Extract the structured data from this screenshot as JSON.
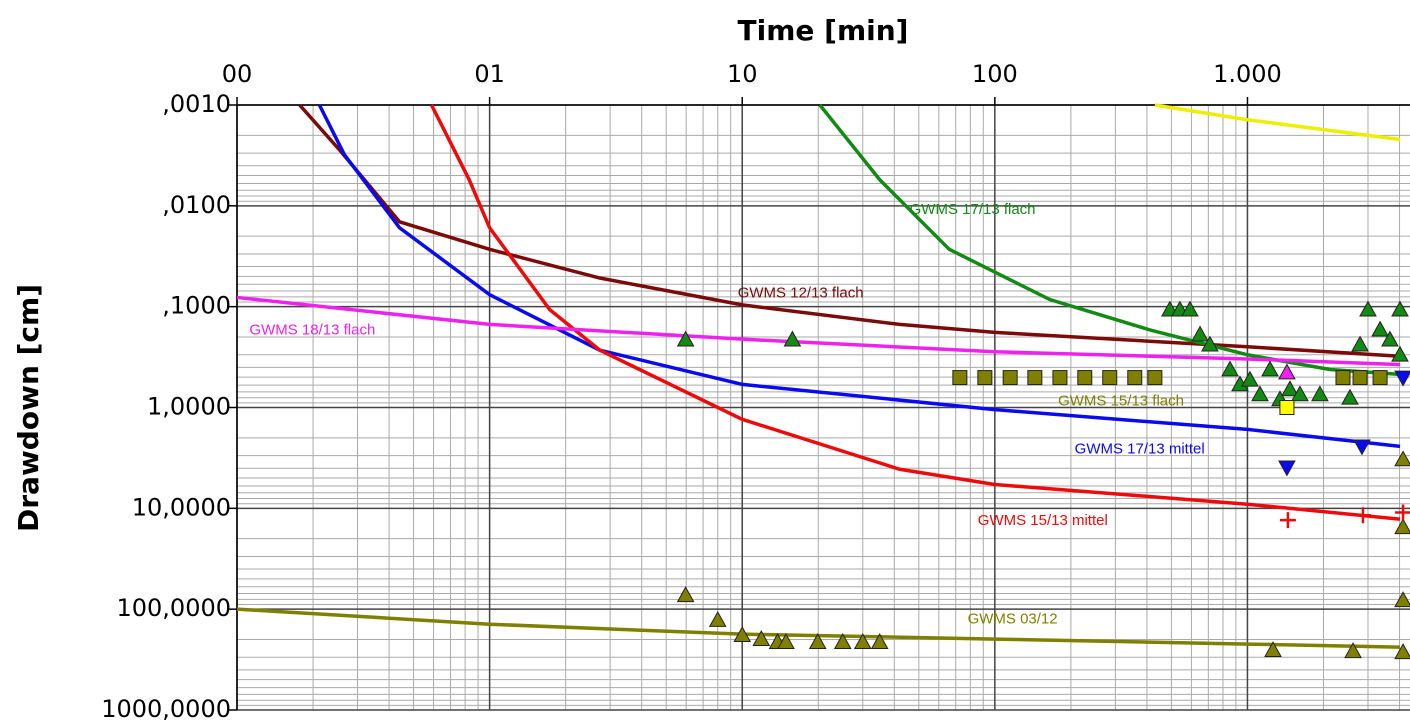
{
  "chart_data": {
    "type": "line",
    "title": "Time [min]",
    "ylabel": "Drawdown [cm]",
    "xscale": "log",
    "yscale": "log",
    "y_inverted": true,
    "grid": true,
    "xlim": [
      0.1,
      4400
    ],
    "ylim": [
      0.001,
      1000
    ],
    "xticks": [
      {
        "value": 0.1,
        "label": "00"
      },
      {
        "value": 1,
        "label": "01"
      },
      10,
      100,
      {
        "value": 1000,
        "label": "1.000"
      }
    ],
    "yticks": [
      {
        "value": 0.001,
        "label": ",0010"
      },
      {
        "value": 0.01,
        "label": ",0100"
      },
      {
        "value": 0.1,
        "label": ",1000"
      },
      {
        "value": 1,
        "label": "1,0000"
      },
      {
        "value": 10,
        "label": "10,0000"
      },
      {
        "value": 100,
        "label": "100,0000"
      },
      {
        "value": 1000,
        "label": "1000,0000"
      }
    ],
    "series": [
      {
        "kind": "line",
        "color": "#7b0a0a",
        "x": [
          0.177,
          0.255,
          0.44,
          1,
          2.73,
          10,
          42,
          100,
          1000,
          4016
        ],
        "values": [
          0.001,
          0.0028,
          0.0144,
          0.027,
          0.052,
          0.096,
          0.15,
          0.18,
          0.25,
          0.31
        ]
      },
      {
        "kind": "line",
        "color": "#0a0aee",
        "x": [
          0.212,
          0.266,
          0.44,
          1,
          2.73,
          10,
          100,
          1000,
          4016
        ],
        "values": [
          0.001,
          0.0031,
          0.0165,
          0.076,
          0.27,
          0.59,
          1.05,
          1.65,
          2.43
        ]
      },
      {
        "kind": "line",
        "color": "#ee0a0a",
        "x": [
          0.589,
          0.83,
          1,
          1.73,
          2.73,
          10,
          42,
          100,
          1000,
          4016
        ],
        "values": [
          0.001,
          0.0055,
          0.0165,
          0.107,
          0.27,
          1.31,
          4.1,
          5.8,
          9.1,
          12.8
        ]
      },
      {
        "kind": "line",
        "color": "#138a13",
        "x": [
          20.3,
          35,
          66,
          165,
          411,
          1000,
          2120,
          4016
        ],
        "values": [
          0.001,
          0.0055,
          0.027,
          0.085,
          0.17,
          0.3,
          0.42,
          0.47
        ]
      },
      {
        "kind": "line",
        "color": "#ee22ee",
        "x": [
          0.1,
          1,
          10,
          100,
          1000,
          4016
        ],
        "values": [
          0.081,
          0.15,
          0.21,
          0.28,
          0.33,
          0.375
        ]
      },
      {
        "kind": "line",
        "color": "#808000",
        "x": [
          0.1,
          1,
          10,
          100,
          1000,
          4016
        ],
        "values": [
          100,
          141,
          177,
          198,
          222,
          238
        ]
      },
      {
        "kind": "line",
        "color": "#eeee00",
        "x": [
          430,
          1000,
          4016
        ],
        "values": [
          0.001,
          0.0014,
          0.0022
        ]
      },
      {
        "kind": "triangle",
        "color": "#138a13",
        "x": [
          5.97,
          15.8,
          493,
          540,
          592,
          649,
          710,
          853,
          934,
          1023,
          1121,
          1228,
          1345,
          1473,
          1614,
          1936,
          2546,
          2791,
          3000,
          3350,
          3665,
          4016,
          4016
        ],
        "values": [
          0.212,
          0.212,
          0.107,
          0.107,
          0.107,
          0.189,
          0.238,
          0.42,
          0.59,
          0.53,
          0.74,
          0.42,
          0.83,
          0.66,
          0.74,
          0.74,
          0.8,
          0.238,
          0.107,
          0.169,
          0.212,
          0.107,
          0.3
        ]
      },
      {
        "kind": "triangle",
        "color": "#808000",
        "x": [
          5.97,
          8.0,
          10,
          11.9,
          13.8,
          14.9,
          19.9,
          25.0,
          30.0,
          35.0,
          1262,
          2618,
          4130,
          4130,
          4130,
          4130
        ],
        "values": [
          72.7,
          128,
          181,
          198,
          212,
          212,
          212,
          212,
          212,
          212,
          255,
          261,
          267,
          81.5,
          15.4,
          3.27
        ]
      },
      {
        "kind": "square",
        "color": "#808000",
        "x": [
          72.7,
          91.3,
          115,
          144,
          181,
          227,
          285,
          358,
          430,
          2389,
          2791,
          3350
        ],
        "values": [
          0.505,
          0.505,
          0.505,
          0.505,
          0.505,
          0.505,
          0.505,
          0.505,
          0.505,
          0.505,
          0.505,
          0.505
        ]
      },
      {
        "kind": "invtriangle",
        "color": "#0a0aee",
        "x": [
          1433,
          2840,
          4130
        ],
        "values": [
          3.93,
          2.43,
          0.505
        ]
      },
      {
        "kind": "plus",
        "color": "#ee0a0a",
        "x": [
          1446,
          2866,
          4130
        ],
        "values": [
          13.1,
          11.7,
          11.0
        ]
      },
      {
        "kind": "square",
        "color": "#ffff00",
        "x": [
          1433
        ],
        "values": [
          1.0
        ]
      },
      {
        "kind": "triangle",
        "color": "#ee22ee",
        "x": [
          1433
        ],
        "values": [
          0.45
        ]
      }
    ],
    "annotations": [
      {
        "text": "GWMS 17/13 flach",
        "color": "#138a13",
        "x": 46,
        "y": 0.011
      },
      {
        "text": "GWMS 12/13 flach",
        "color": "#7b0a0a",
        "x": 9.6,
        "y": 0.0743
      },
      {
        "text": "GWMS 18/13 flach",
        "color": "#ee22ee",
        "x": 0.112,
        "y": 0.173
      },
      {
        "text": "GWMS 15/13 flach",
        "color": "#808000",
        "x": 178,
        "y": 0.87
      },
      {
        "text": "GWMS 17/13 mittel",
        "color": "#0a0aee",
        "x": 207,
        "y": 2.6
      },
      {
        "text": "GWMS 15/13 mittel",
        "color": "#ee0a0a",
        "x": 85.6,
        "y": 13.4
      },
      {
        "text": "GWMS 03/12",
        "color": "#808000",
        "x": 78,
        "y": 126
      }
    ]
  }
}
